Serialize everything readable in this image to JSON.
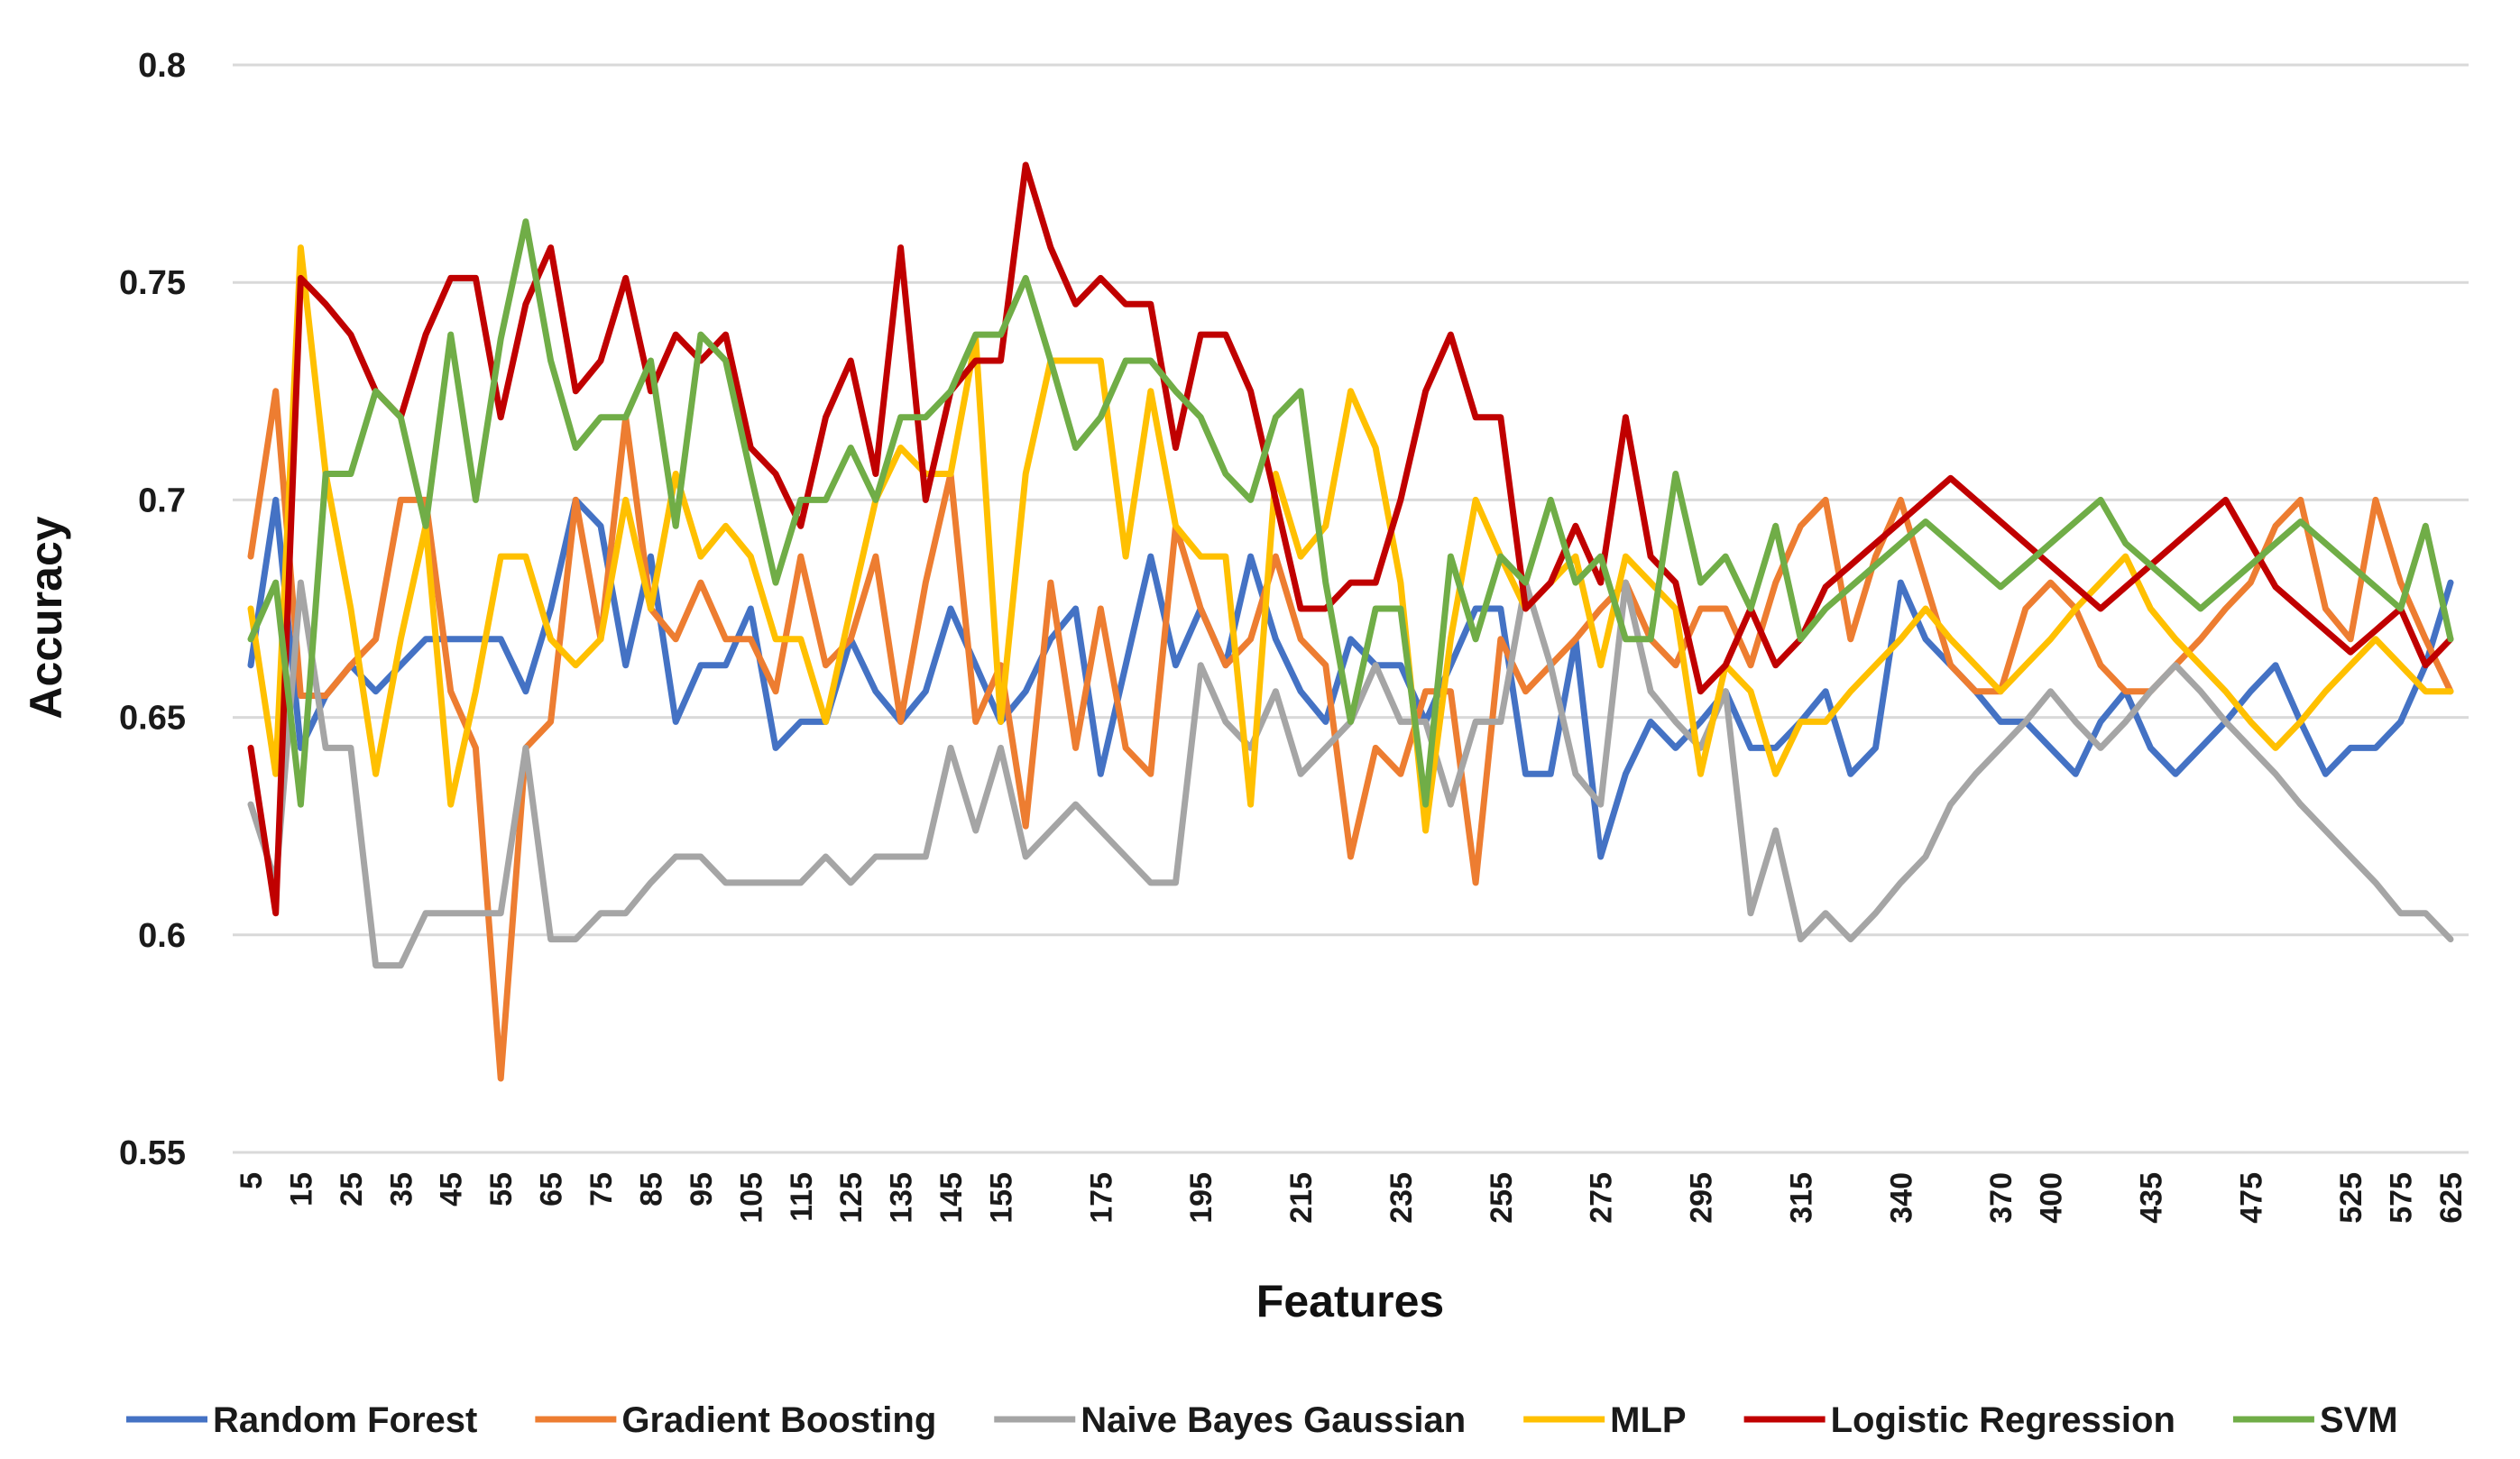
{
  "chart_data": {
    "type": "line",
    "title": "",
    "xlabel": "Features",
    "ylabel": "Accuracy",
    "ylim": [
      0.55,
      0.8
    ],
    "yticks": [
      0.55,
      0.6,
      0.65,
      0.7,
      0.75,
      0.8
    ],
    "ytick_labels": [
      "0.55",
      "0.6",
      "0.65",
      "0.7",
      "0.75",
      "0.8"
    ],
    "grid": true,
    "legend_position": "bottom",
    "x": [
      "5",
      "10",
      "15",
      "20",
      "25",
      "30",
      "35",
      "40",
      "45",
      "50",
      "55",
      "60",
      "65",
      "70",
      "75",
      "80",
      "85",
      "90",
      "95",
      "100",
      "105",
      "110",
      "115",
      "120",
      "125",
      "130",
      "135",
      "140",
      "145",
      "150",
      "155",
      "160",
      "165",
      "170",
      "175",
      "180",
      "185",
      "190",
      "195",
      "200",
      "205",
      "210",
      "215",
      "220",
      "225",
      "230",
      "235",
      "240",
      "245",
      "250",
      "255",
      "260",
      "265",
      "270",
      "275",
      "280",
      "285",
      "290",
      "295",
      "300",
      "305",
      "310",
      "315",
      "320",
      "330",
      "335",
      "340",
      "350",
      "360",
      "365",
      "370",
      "380",
      "400",
      "405",
      "410",
      "415",
      "435",
      "450",
      "455",
      "465",
      "475",
      "490",
      "500",
      "510",
      "525",
      "550",
      "575",
      "600",
      "625"
    ],
    "x_tick_labels": [
      "5",
      "15",
      "25",
      "35",
      "45",
      "55",
      "65",
      "75",
      "85",
      "95",
      "105",
      "115",
      "125",
      "135",
      "145",
      "155",
      "175",
      "195",
      "215",
      "235",
      "255",
      "275",
      "295",
      "315",
      "340",
      "370",
      "400",
      "435",
      "475",
      "525",
      "575",
      "625"
    ],
    "series": [
      {
        "name": "Random Forest",
        "color": "#4472C4",
        "values": [
          0.662,
          0.7,
          0.643,
          0.655,
          0.662,
          0.656,
          0.662,
          0.668,
          0.668,
          0.668,
          0.668,
          0.656,
          0.675,
          0.7,
          0.694,
          0.662,
          0.687,
          0.649,
          0.662,
          0.662,
          0.675,
          0.643,
          0.649,
          0.649,
          0.668,
          0.656,
          0.649,
          0.656,
          0.675,
          0.662,
          0.649,
          0.656,
          0.668,
          0.675,
          0.637,
          0.662,
          0.687,
          0.662,
          0.675,
          0.662,
          0.687,
          0.668,
          0.656,
          0.649,
          0.668,
          0.662,
          0.662,
          0.649,
          0.662,
          0.675,
          0.675,
          0.637,
          0.637,
          0.668,
          0.618,
          0.637,
          0.649,
          0.643,
          0.649,
          0.656,
          0.643,
          0.643,
          0.649,
          0.656,
          0.637,
          0.643,
          0.681,
          0.668,
          0.662,
          0.656,
          0.649,
          0.649,
          0.643,
          0.637,
          0.649,
          0.656,
          0.643,
          0.637,
          0.643,
          0.649,
          0.656,
          0.662,
          0.649,
          0.637,
          0.643,
          0.643,
          0.649,
          0.662,
          0.681
        ]
      },
      {
        "name": "Gradient Boosting",
        "color": "#ED7D31",
        "values": [
          0.687,
          0.725,
          0.655,
          0.655,
          0.662,
          0.668,
          0.7,
          0.7,
          0.656,
          0.643,
          0.567,
          0.643,
          0.649,
          0.7,
          0.668,
          0.719,
          0.675,
          0.668,
          0.681,
          0.668,
          0.668,
          0.656,
          0.687,
          0.662,
          0.668,
          0.687,
          0.649,
          0.681,
          0.706,
          0.649,
          0.662,
          0.625,
          0.681,
          0.643,
          0.675,
          0.643,
          0.637,
          0.694,
          0.675,
          0.662,
          0.668,
          0.687,
          0.668,
          0.662,
          0.618,
          0.643,
          0.637,
          0.656,
          0.656,
          0.612,
          0.668,
          0.656,
          0.662,
          0.668,
          0.675,
          0.681,
          0.668,
          0.662,
          0.675,
          0.675,
          0.662,
          0.681,
          0.694,
          0.7,
          0.668,
          0.687,
          0.7,
          0.681,
          0.662,
          0.656,
          0.656,
          0.675,
          0.681,
          0.675,
          0.662,
          0.656,
          0.656,
          0.662,
          0.668,
          0.675,
          0.681,
          0.694,
          0.7,
          0.675,
          0.668,
          0.7,
          0.681,
          0.668,
          0.656
        ]
      },
      {
        "name": "Naive Bayes Gaussian",
        "color": "#A5A5A5",
        "values": [
          0.63,
          0.612,
          0.681,
          0.643,
          0.643,
          0.593,
          0.593,
          0.605,
          0.605,
          0.605,
          0.605,
          0.643,
          0.599,
          0.599,
          0.605,
          0.605,
          0.612,
          0.618,
          0.618,
          0.612,
          0.612,
          0.612,
          0.612,
          0.618,
          0.612,
          0.618,
          0.618,
          0.618,
          0.643,
          0.624,
          0.643,
          0.618,
          0.624,
          0.63,
          0.624,
          0.618,
          0.612,
          0.612,
          0.662,
          0.649,
          0.643,
          0.656,
          0.637,
          0.643,
          0.649,
          0.662,
          0.649,
          0.649,
          0.63,
          0.649,
          0.649,
          0.681,
          0.662,
          0.637,
          0.63,
          0.681,
          0.656,
          0.649,
          0.643,
          0.656,
          0.605,
          0.624,
          0.599,
          0.605,
          0.599,
          0.605,
          0.612,
          0.618,
          0.63,
          0.637,
          0.643,
          0.649,
          0.656,
          0.649,
          0.643,
          0.649,
          0.656,
          0.662,
          0.656,
          0.649,
          0.643,
          0.637,
          0.63,
          0.624,
          0.618,
          0.612,
          0.605,
          0.605,
          0.599
        ]
      },
      {
        "name": "MLP",
        "color": "#FFC000",
        "values": [
          0.675,
          0.637,
          0.758,
          0.706,
          0.675,
          0.637,
          0.668,
          0.694,
          0.63,
          0.656,
          0.687,
          0.687,
          0.668,
          0.662,
          0.668,
          0.7,
          0.675,
          0.706,
          0.687,
          0.694,
          0.687,
          0.668,
          0.668,
          0.649,
          0.675,
          0.7,
          0.712,
          0.706,
          0.706,
          0.737,
          0.649,
          0.706,
          0.732,
          0.732,
          0.732,
          0.687,
          0.725,
          0.694,
          0.687,
          0.687,
          0.63,
          0.706,
          0.687,
          0.694,
          0.725,
          0.712,
          0.681,
          0.624,
          0.668,
          0.7,
          0.687,
          0.675,
          0.681,
          0.687,
          0.662,
          0.687,
          0.681,
          0.675,
          0.637,
          0.662,
          0.656,
          0.637,
          0.649,
          0.649,
          0.656,
          0.662,
          0.668,
          0.675,
          0.668,
          0.662,
          0.656,
          0.662,
          0.668,
          0.675,
          0.681,
          0.687,
          0.675,
          0.668,
          0.662,
          0.656,
          0.649,
          0.643,
          0.649,
          0.656,
          0.662,
          0.668,
          0.662,
          0.656,
          0.656
        ]
      },
      {
        "name": "Logistic Regression",
        "color": "#C00000",
        "values": [
          0.643,
          0.605,
          0.751,
          0.745,
          0.738,
          0.725,
          0.719,
          0.738,
          0.751,
          0.751,
          0.719,
          0.745,
          0.758,
          0.725,
          0.732,
          0.751,
          0.725,
          0.738,
          0.732,
          0.738,
          0.712,
          0.706,
          0.694,
          0.719,
          0.732,
          0.706,
          0.758,
          0.7,
          0.725,
          0.732,
          0.732,
          0.777,
          0.758,
          0.745,
          0.751,
          0.745,
          0.745,
          0.712,
          0.738,
          0.738,
          0.725,
          0.7,
          0.675,
          0.675,
          0.681,
          0.681,
          0.7,
          0.725,
          0.738,
          0.719,
          0.719,
          0.675,
          0.681,
          0.694,
          0.681,
          0.719,
          0.687,
          0.681,
          0.656,
          0.662,
          0.675,
          0.662,
          0.668,
          0.68,
          0.685,
          0.69,
          0.695,
          0.7,
          0.705,
          0.7,
          0.695,
          0.69,
          0.685,
          0.68,
          0.675,
          0.68,
          0.685,
          0.69,
          0.695,
          0.7,
          0.69,
          0.68,
          0.675,
          0.67,
          0.665,
          0.67,
          0.675,
          0.662,
          0.668
        ]
      },
      {
        "name": "SVM",
        "color": "#70AD47",
        "values": [
          0.668,
          0.681,
          0.63,
          0.706,
          0.706,
          0.725,
          0.719,
          0.694,
          0.738,
          0.7,
          0.737,
          0.764,
          0.732,
          0.712,
          0.719,
          0.719,
          0.732,
          0.694,
          0.738,
          0.732,
          0.706,
          0.681,
          0.7,
          0.7,
          0.712,
          0.7,
          0.719,
          0.719,
          0.725,
          0.738,
          0.738,
          0.751,
          0.732,
          0.712,
          0.719,
          0.732,
          0.732,
          0.725,
          0.719,
          0.706,
          0.7,
          0.719,
          0.725,
          0.681,
          0.649,
          0.675,
          0.675,
          0.63,
          0.687,
          0.668,
          0.687,
          0.681,
          0.7,
          0.681,
          0.687,
          0.668,
          0.668,
          0.706,
          0.681,
          0.687,
          0.675,
          0.694,
          0.668,
          0.675,
          0.68,
          0.685,
          0.69,
          0.695,
          0.69,
          0.685,
          0.68,
          0.685,
          0.69,
          0.695,
          0.7,
          0.69,
          0.685,
          0.68,
          0.675,
          0.68,
          0.685,
          0.69,
          0.695,
          0.69,
          0.685,
          0.68,
          0.675,
          0.694,
          0.668
        ]
      }
    ]
  }
}
